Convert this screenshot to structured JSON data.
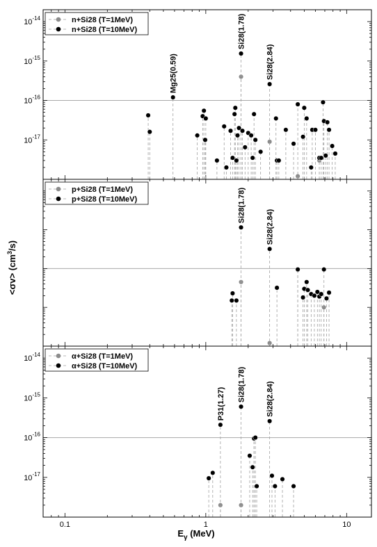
{
  "figure": {
    "xlabel": "E",
    "xlabel_sub": "γ",
    "xlabel_unit": " (MeV)",
    "ylabel": "<σv> (cm",
    "ylabel_sup": "3",
    "ylabel_tail": "/s)",
    "x_ticks": [
      "0.1",
      "1",
      "10"
    ]
  },
  "chart_data": [
    {
      "type": "scatter",
      "panel": "n+Si28",
      "xscale": "log",
      "yscale": "log",
      "xlim": [
        0.07,
        15
      ],
      "ylim": [
        1e-18,
        2e-14
      ],
      "y_ticks": [
        {
          "base": "10",
          "exp": "-14"
        },
        {
          "base": "10",
          "exp": "-15"
        },
        {
          "base": "10",
          "exp": "-16"
        },
        {
          "base": "10",
          "exp": "-17"
        }
      ],
      "y_tick_values": [
        1e-14,
        1e-15,
        1e-16,
        1e-17
      ],
      "reference_line": 1e-16,
      "legend_position": "top-left",
      "series": [
        {
          "name": "n+Si28 (T=1MeV)",
          "color": "#8c8c8c",
          "x": [
            1.78,
            2.84,
            4.5,
            6.4
          ],
          "y": [
            4e-16,
            9e-18,
            1.2e-18,
            3e-18
          ]
        },
        {
          "name": "n+Si28 (T=10MeV)",
          "color": "#000000",
          "x": [
            0.39,
            0.4,
            0.585,
            0.87,
            0.95,
            0.97,
            0.99,
            1.0,
            1.2,
            1.35,
            1.4,
            1.5,
            1.55,
            1.6,
            1.62,
            1.65,
            1.68,
            1.72,
            1.78,
            1.82,
            1.9,
            2.0,
            2.1,
            2.15,
            2.2,
            2.25,
            2.45,
            2.84,
            3.15,
            3.2,
            3.3,
            3.7,
            4.2,
            4.5,
            4.9,
            5.0,
            5.2,
            5.6,
            5.7,
            6.0,
            6.4,
            6.6,
            6.8,
            6.9,
            7.1,
            7.3,
            7.5,
            7.9,
            8.3
          ],
          "y": [
            4.2e-17,
            1.6e-17,
            1.2e-16,
            1.3e-17,
            4e-17,
            5.5e-17,
            1e-17,
            3.5e-17,
            3e-18,
            2.2e-17,
            2e-18,
            1.7e-17,
            3.5e-18,
            4.5e-17,
            6.5e-17,
            3e-18,
            1.3e-17,
            2e-17,
            1.55e-15,
            1.7e-17,
            6.5e-18,
            1.5e-17,
            1.3e-17,
            3.5e-18,
            4.5e-17,
            1e-17,
            5e-18,
            2.6e-16,
            3.5e-17,
            3e-18,
            3e-18,
            1.8e-17,
            8e-18,
            8e-17,
            1.2e-17,
            6.5e-17,
            3.5e-17,
            2e-18,
            1.8e-17,
            1.8e-17,
            3.5e-18,
            3.5e-18,
            9e-17,
            3e-17,
            4e-18,
            2.8e-17,
            1.8e-17,
            7e-18,
            4.5e-18
          ]
        }
      ],
      "annotations": [
        {
          "text": "Mg25(0.59)",
          "x": 0.585,
          "y": 1.2e-16
        },
        {
          "text": "Si28(1.78)",
          "x": 1.78,
          "y": 1.55e-15
        },
        {
          "text": "Si28(2.84)",
          "x": 2.84,
          "y": 2.6e-16
        }
      ]
    },
    {
      "type": "scatter",
      "panel": "p+Si28",
      "xscale": "log",
      "yscale": "log",
      "xlim": [
        0.07,
        15
      ],
      "ylim": [
        1e-18,
        2e-14
      ],
      "y_ticks": [],
      "y_tick_values": [
        1e-14,
        1e-15,
        1e-16,
        1e-17
      ],
      "reference_line": 1e-16,
      "legend_position": "top-left",
      "series": [
        {
          "name": "p+Si28 (T=1MeV)",
          "color": "#8c8c8c",
          "x": [
            1.78,
            2.84,
            4.5,
            6.9
          ],
          "y": [
            4.5e-17,
            1.2e-18,
            9.5e-17,
            1e-17
          ]
        },
        {
          "name": "p+Si28 (T=10MeV)",
          "color": "#000000",
          "x": [
            1.53,
            1.55,
            1.65,
            1.78,
            2.84,
            3.2,
            4.5,
            4.9,
            5.0,
            5.2,
            5.3,
            5.6,
            5.9,
            6.2,
            6.4,
            6.6,
            6.9,
            7.2,
            7.5
          ],
          "y": [
            1.5e-17,
            2.3e-17,
            1.5e-17,
            1.15e-15,
            3.2e-16,
            3.2e-17,
            9.5e-17,
            1.8e-17,
            3e-17,
            4.5e-17,
            2.8e-17,
            2.2e-17,
            2e-17,
            2.5e-17,
            1.9e-17,
            2.2e-17,
            9.5e-17,
            1.7e-17,
            2.4e-17
          ]
        }
      ],
      "annotations": [
        {
          "text": "Si28(1.78)",
          "x": 1.78,
          "y": 1.15e-15
        },
        {
          "text": "Si28(2.84)",
          "x": 2.84,
          "y": 3.2e-16
        }
      ]
    },
    {
      "type": "scatter",
      "panel": "α+Si28",
      "xscale": "log",
      "yscale": "log",
      "xlim": [
        0.07,
        15
      ],
      "ylim": [
        1e-18,
        2e-14
      ],
      "y_ticks": [
        {
          "base": "10",
          "exp": "-14"
        },
        {
          "base": "10",
          "exp": "-15"
        },
        {
          "base": "10",
          "exp": "-16"
        },
        {
          "base": "10",
          "exp": "-17"
        }
      ],
      "y_tick_values": [
        1e-14,
        1e-15,
        1e-16,
        1e-17
      ],
      "reference_line": 1e-16,
      "legend_position": "top-left",
      "series": [
        {
          "name": "α+Si28 (T=1MeV)",
          "color": "#8c8c8c",
          "x": [
            1.27,
            1.78,
            2.2
          ],
          "y": [
            2e-18,
            2e-18,
            9.5e-17
          ]
        },
        {
          "name": "α+Si28 (T=10MeV)",
          "color": "#000000",
          "x": [
            1.05,
            1.12,
            1.27,
            1.78,
            2.05,
            2.15,
            2.2,
            2.25,
            2.3,
            2.84,
            2.95,
            3.1,
            3.5,
            4.2
          ],
          "y": [
            9.5e-18,
            1.3e-17,
            2.1e-16,
            6e-16,
            3.5e-17,
            1.8e-17,
            9.5e-17,
            1e-16,
            6e-18,
            2.6e-16,
            1.1e-17,
            6e-18,
            9e-18,
            6e-18
          ]
        }
      ],
      "annotations": [
        {
          "text": "P31(1.27)",
          "x": 1.27,
          "y": 2.1e-16
        },
        {
          "text": "Si28(1.78)",
          "x": 1.78,
          "y": 6e-16
        },
        {
          "text": "Si28(2.84)",
          "x": 2.84,
          "y": 2.6e-16
        }
      ]
    }
  ]
}
